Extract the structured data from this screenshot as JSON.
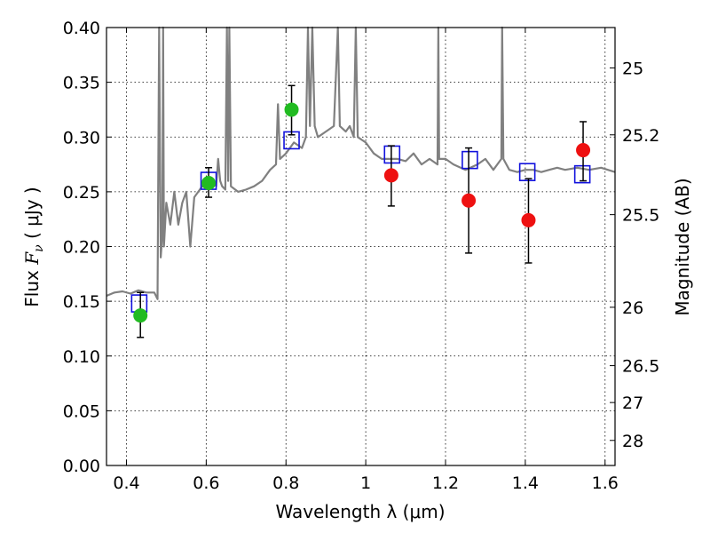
{
  "chart_data": {
    "type": "scatter",
    "xlabel": "Wavelength  λ (μm)",
    "ylabel_text": "Flux  ",
    "ylabel_math": "F",
    "ylabel_math_sub": "ν",
    "ylabel_units": "  ( μJy )",
    "y2label": "Magnitude (AB)",
    "xlim": [
      0.35,
      1.625
    ],
    "ylim": [
      0.0,
      0.4
    ],
    "grid": true,
    "x_ticks": [
      {
        "value": 0.4,
        "label": "0.4"
      },
      {
        "value": 0.6,
        "label": "0.6"
      },
      {
        "value": 0.8,
        "label": "0.8"
      },
      {
        "value": 1.0,
        "label": "1"
      },
      {
        "value": 1.2,
        "label": "1.2"
      },
      {
        "value": 1.4,
        "label": "1.4"
      },
      {
        "value": 1.6,
        "label": "1.6"
      }
    ],
    "y_ticks": [
      {
        "value": 0.0,
        "label": "0.00"
      },
      {
        "value": 0.05,
        "label": "0.05"
      },
      {
        "value": 0.1,
        "label": "0.10"
      },
      {
        "value": 0.15,
        "label": "0.15"
      },
      {
        "value": 0.2,
        "label": "0.20"
      },
      {
        "value": 0.25,
        "label": "0.25"
      },
      {
        "value": 0.3,
        "label": "0.30"
      },
      {
        "value": 0.35,
        "label": "0.35"
      },
      {
        "value": 0.4,
        "label": "0.40"
      }
    ],
    "mag_ticks": [
      {
        "label": "25",
        "flux": 0.3631
      },
      {
        "label": "25.2",
        "flux": 0.302
      },
      {
        "label": "25.5",
        "flux": 0.2291
      },
      {
        "label": "26",
        "flux": 0.1445
      },
      {
        "label": "26.5",
        "flux": 0.0912
      },
      {
        "label": "27",
        "flux": 0.0575
      },
      {
        "label": "28",
        "flux": 0.0229
      }
    ],
    "observed": [
      {
        "x": 0.435,
        "y": 0.137,
        "err_low": 0.117,
        "err_high": 0.158,
        "color": "#22bb22"
      },
      {
        "x": 0.606,
        "y": 0.258,
        "err_low": 0.245,
        "err_high": 0.272,
        "color": "#22bb22"
      },
      {
        "x": 0.814,
        "y": 0.325,
        "err_low": 0.302,
        "err_high": 0.347,
        "color": "#22bb22"
      },
      {
        "x": 1.064,
        "y": 0.265,
        "err_low": 0.237,
        "err_high": 0.292,
        "color": "#ee1111"
      },
      {
        "x": 1.258,
        "y": 0.242,
        "err_low": 0.194,
        "err_high": 0.29,
        "color": "#ee1111"
      },
      {
        "x": 1.408,
        "y": 0.224,
        "err_low": 0.185,
        "err_high": 0.262,
        "color": "#ee1111"
      },
      {
        "x": 1.545,
        "y": 0.288,
        "err_low": 0.26,
        "err_high": 0.314,
        "color": "#ee1111"
      }
    ],
    "model_points": [
      {
        "x": 0.432,
        "y": 0.148
      },
      {
        "x": 0.606,
        "y": 0.26
      },
      {
        "x": 0.814,
        "y": 0.297
      },
      {
        "x": 1.066,
        "y": 0.284
      },
      {
        "x": 1.261,
        "y": 0.279
      },
      {
        "x": 1.405,
        "y": 0.268
      },
      {
        "x": 1.543,
        "y": 0.266
      }
    ],
    "model_spectrum": [
      [
        0.35,
        0.155
      ],
      [
        0.37,
        0.158
      ],
      [
        0.39,
        0.159
      ],
      [
        0.41,
        0.157
      ],
      [
        0.43,
        0.16
      ],
      [
        0.45,
        0.158
      ],
      [
        0.47,
        0.158
      ],
      [
        0.478,
        0.152
      ],
      [
        0.482,
        0.4
      ],
      [
        0.486,
        0.19
      ],
      [
        0.49,
        0.21
      ],
      [
        0.492,
        0.4
      ],
      [
        0.494,
        0.2
      ],
      [
        0.5,
        0.24
      ],
      [
        0.51,
        0.22
      ],
      [
        0.52,
        0.25
      ],
      [
        0.53,
        0.22
      ],
      [
        0.54,
        0.24
      ],
      [
        0.55,
        0.25
      ],
      [
        0.56,
        0.2
      ],
      [
        0.57,
        0.245
      ],
      [
        0.58,
        0.25
      ],
      [
        0.59,
        0.255
      ],
      [
        0.6,
        0.255
      ],
      [
        0.61,
        0.258
      ],
      [
        0.62,
        0.26
      ],
      [
        0.625,
        0.255
      ],
      [
        0.63,
        0.28
      ],
      [
        0.635,
        0.26
      ],
      [
        0.64,
        0.255
      ],
      [
        0.648,
        0.252
      ],
      [
        0.652,
        0.4
      ],
      [
        0.655,
        0.26
      ],
      [
        0.658,
        0.4
      ],
      [
        0.662,
        0.255
      ],
      [
        0.68,
        0.25
      ],
      [
        0.7,
        0.252
      ],
      [
        0.72,
        0.255
      ],
      [
        0.74,
        0.26
      ],
      [
        0.76,
        0.27
      ],
      [
        0.775,
        0.275
      ],
      [
        0.78,
        0.33
      ],
      [
        0.785,
        0.28
      ],
      [
        0.8,
        0.285
      ],
      [
        0.82,
        0.295
      ],
      [
        0.84,
        0.29
      ],
      [
        0.85,
        0.3
      ],
      [
        0.855,
        0.4
      ],
      [
        0.86,
        0.31
      ],
      [
        0.866,
        0.4
      ],
      [
        0.872,
        0.31
      ],
      [
        0.88,
        0.3
      ],
      [
        0.9,
        0.305
      ],
      [
        0.92,
        0.31
      ],
      [
        0.93,
        0.4
      ],
      [
        0.935,
        0.31
      ],
      [
        0.95,
        0.305
      ],
      [
        0.96,
        0.31
      ],
      [
        0.97,
        0.3
      ],
      [
        0.975,
        0.4
      ],
      [
        0.98,
        0.3
      ],
      [
        1.0,
        0.295
      ],
      [
        1.02,
        0.285
      ],
      [
        1.04,
        0.28
      ],
      [
        1.06,
        0.28
      ],
      [
        1.08,
        0.28
      ],
      [
        1.1,
        0.278
      ],
      [
        1.12,
        0.285
      ],
      [
        1.14,
        0.275
      ],
      [
        1.16,
        0.28
      ],
      [
        1.18,
        0.275
      ],
      [
        1.182,
        0.4
      ],
      [
        1.184,
        0.28
      ],
      [
        1.2,
        0.28
      ],
      [
        1.22,
        0.275
      ],
      [
        1.25,
        0.27
      ],
      [
        1.28,
        0.275
      ],
      [
        1.3,
        0.28
      ],
      [
        1.32,
        0.27
      ],
      [
        1.34,
        0.28
      ],
      [
        1.342,
        0.4
      ],
      [
        1.345,
        0.28
      ],
      [
        1.36,
        0.27
      ],
      [
        1.38,
        0.268
      ],
      [
        1.4,
        0.27
      ],
      [
        1.42,
        0.27
      ],
      [
        1.44,
        0.268
      ],
      [
        1.46,
        0.27
      ],
      [
        1.48,
        0.272
      ],
      [
        1.5,
        0.27
      ],
      [
        1.53,
        0.272
      ],
      [
        1.56,
        0.27
      ],
      [
        1.59,
        0.272
      ],
      [
        1.625,
        0.268
      ]
    ]
  }
}
